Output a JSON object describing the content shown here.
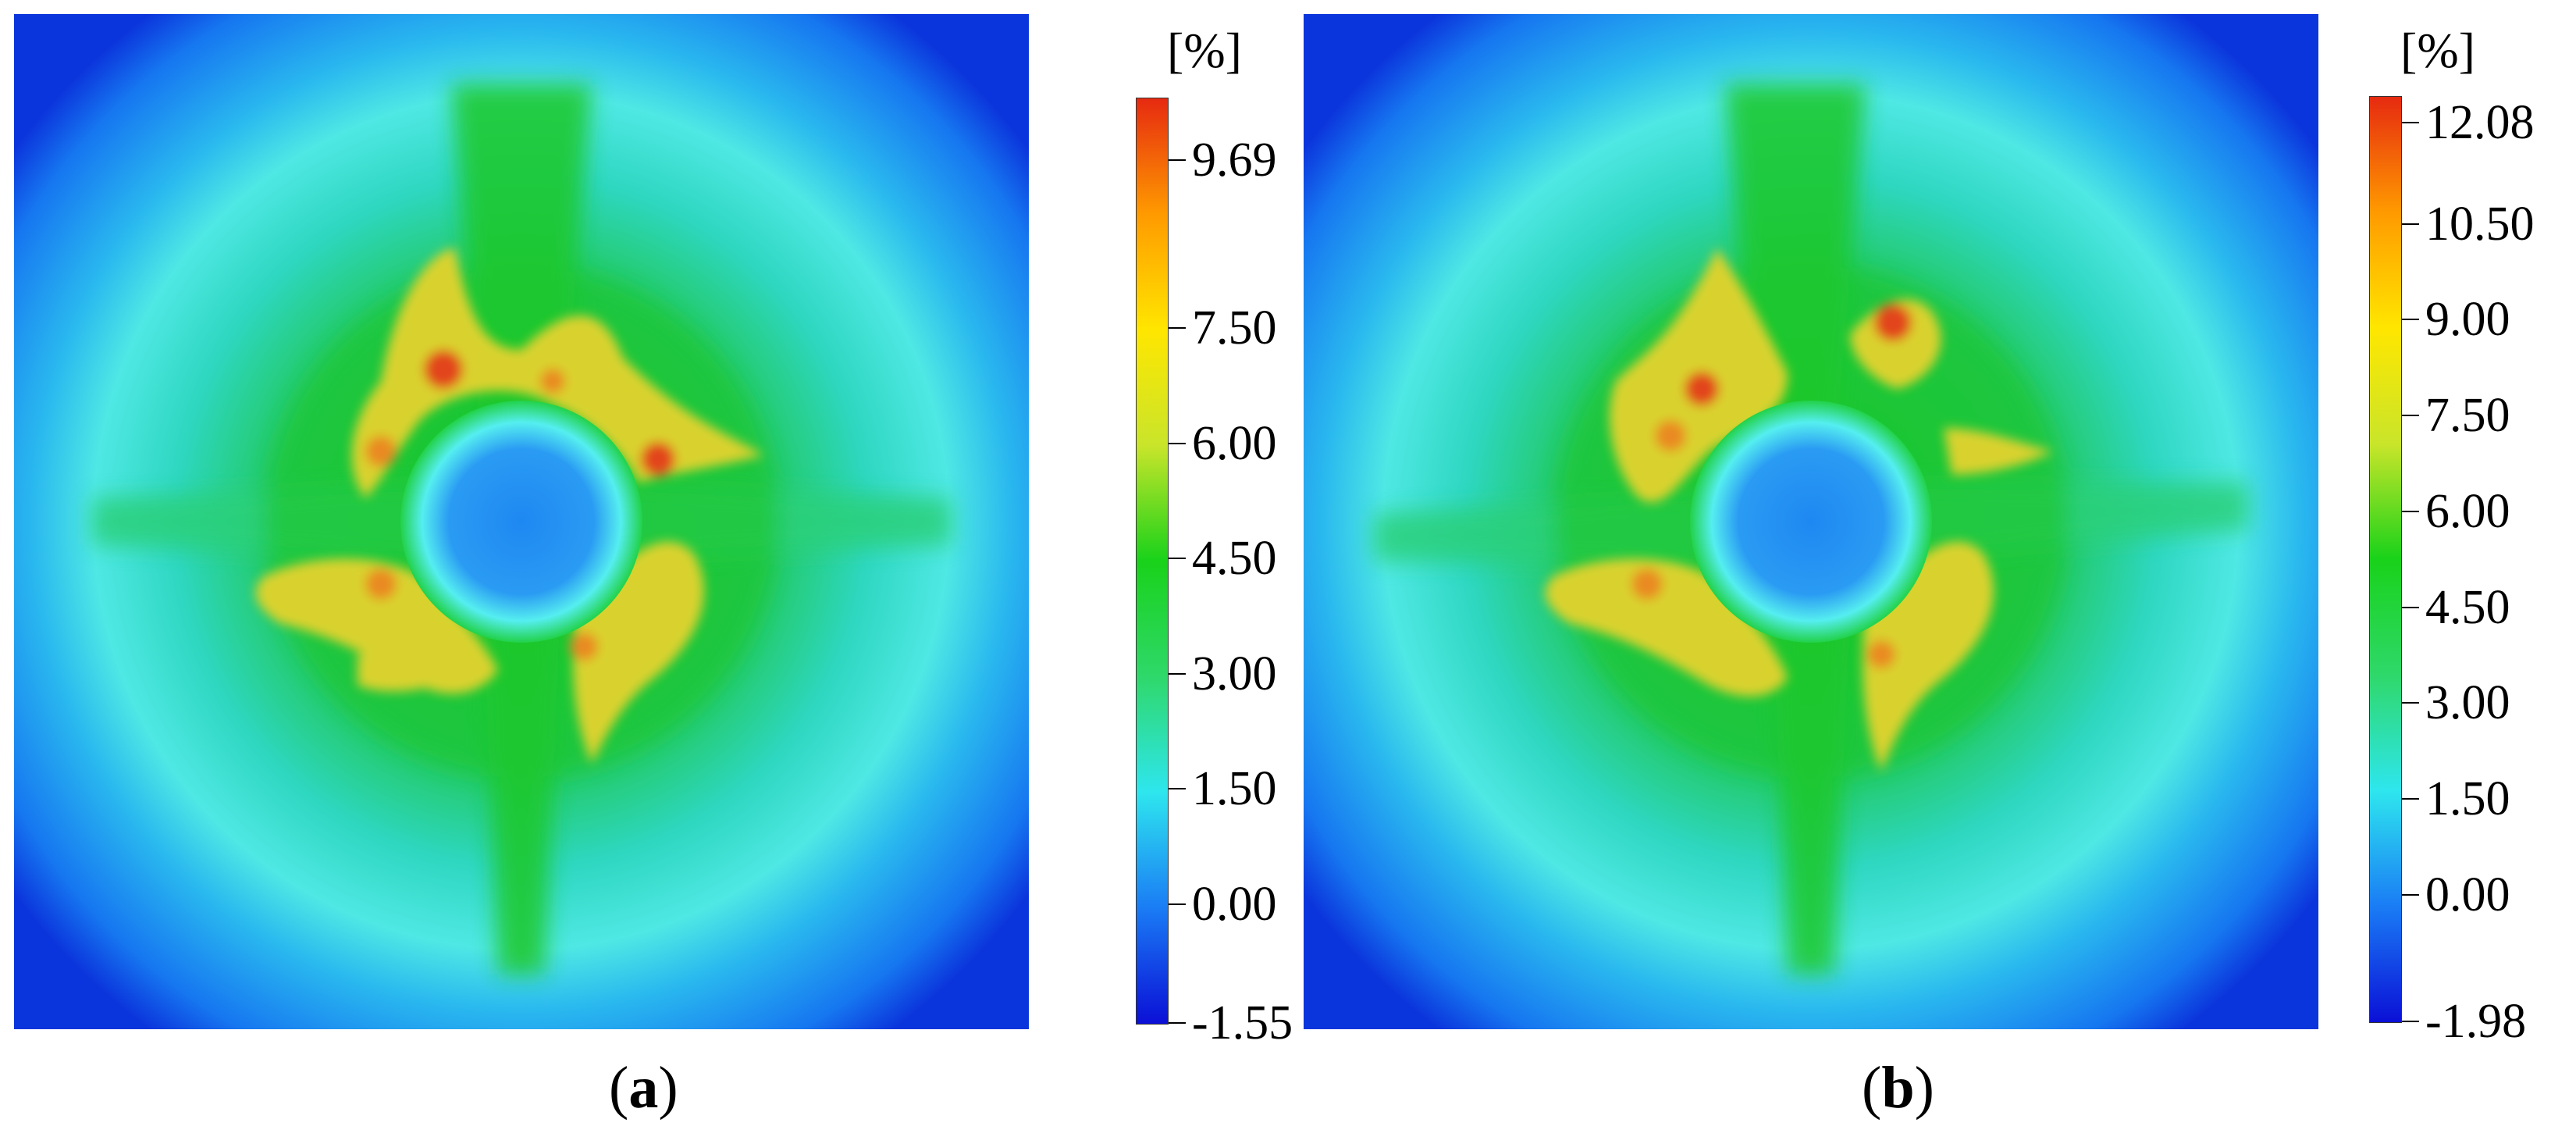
{
  "chart_data": [
    {
      "type": "heatmap",
      "panel_label": "a",
      "colorbar": {
        "unit": "[%]",
        "min": -1.55,
        "max": 10.5,
        "tick_labels": [
          "9.69",
          "7.50",
          "6.00",
          "4.50",
          "3.00",
          "1.50",
          "0.00",
          "-1.55"
        ],
        "tick_values": [
          9.69,
          7.5,
          6.0,
          4.5,
          3.0,
          1.5,
          0.0,
          -1.55
        ],
        "colors": [
          "#0b10d6",
          "#1a7cf5",
          "#2ee6ee",
          "#2fd86a",
          "#19d21a",
          "#c9e52a",
          "#ffe600",
          "#ff9a00",
          "#e62a10"
        ]
      },
      "field": {
        "center_hole_value": 0.6,
        "ring_value": 4.6,
        "outer_corner_value": -0.6,
        "hotspot_peak_value": 9.69
      }
    },
    {
      "type": "heatmap",
      "panel_label": "b",
      "colorbar": {
        "unit": "[%]",
        "min": -1.98,
        "max": 12.5,
        "tick_labels": [
          "12.08",
          "10.50",
          "9.00",
          "7.50",
          "6.00",
          "4.50",
          "3.00",
          "1.50",
          "0.00",
          "-1.98"
        ],
        "tick_values": [
          12.08,
          10.5,
          9.0,
          7.5,
          6.0,
          4.5,
          3.0,
          1.5,
          0.0,
          -1.98
        ],
        "colors": [
          "#0b10d6",
          "#1a7cf5",
          "#2ee6ee",
          "#2fd86a",
          "#19d21a",
          "#c9e52a",
          "#ffe600",
          "#ff9a00",
          "#e62a10"
        ]
      },
      "field": {
        "center_hole_value": 0.7,
        "ring_value": 5.6,
        "outer_corner_value": -0.7,
        "hotspot_peak_value": 12.08
      }
    }
  ],
  "labels": {
    "a": "a",
    "b": "b"
  }
}
